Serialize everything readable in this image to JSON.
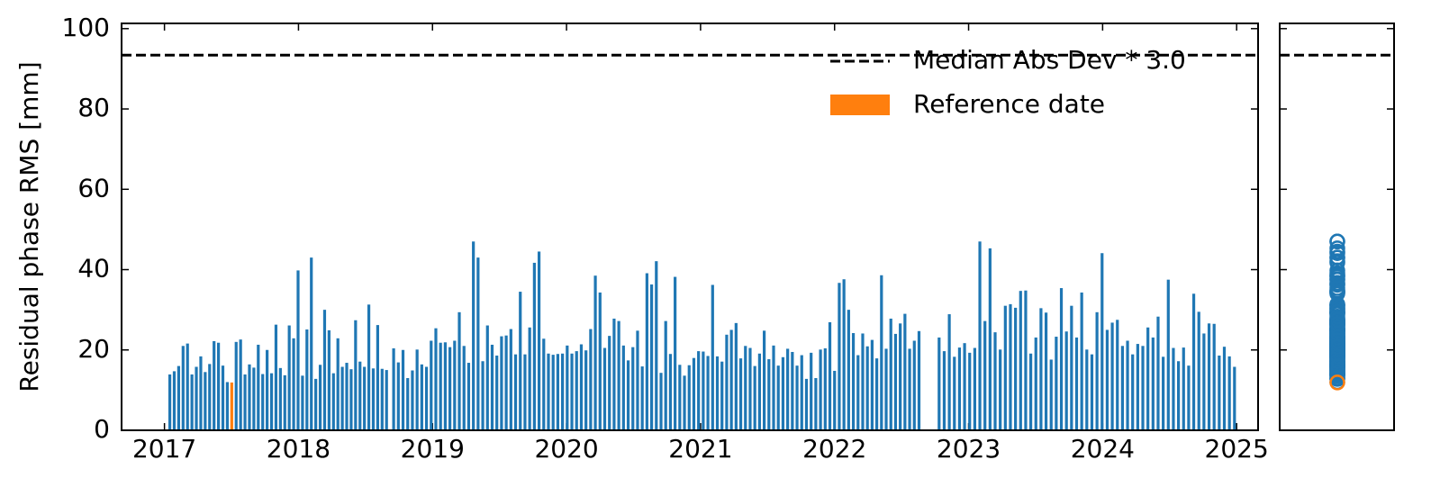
{
  "chart_data": {
    "type": "bar",
    "y_label": "Residual phase RMS [mm]",
    "xlim": [
      2016.68,
      2025.16
    ],
    "xticks": [
      2017,
      2018,
      2019,
      2020,
      2021,
      2022,
      2023,
      2024,
      2025
    ],
    "ylim": [
      0,
      101.3
    ],
    "yticks": [
      0,
      20,
      40,
      60,
      80,
      100
    ],
    "threshold": {
      "label": "Median Abs Dev * 3.0",
      "value": 93.4
    },
    "series": [
      {
        "color": "#1f77b4",
        "x": [
          2017.04,
          2017.073,
          2017.106,
          2017.139,
          2017.172,
          2017.205,
          2017.238,
          2017.271,
          2017.304,
          2017.337,
          2017.37,
          2017.403,
          2017.436,
          2017.469,
          2017.535,
          2017.568,
          2017.601,
          2017.634,
          2017.667,
          2017.7,
          2017.733,
          2017.766,
          2017.799,
          2017.832,
          2017.865,
          2017.898,
          2017.931,
          2017.964,
          2017.997,
          2018.03,
          2018.063,
          2018.096,
          2018.129,
          2018.162,
          2018.195,
          2018.228,
          2018.261,
          2018.294,
          2018.327,
          2018.36,
          2018.393,
          2018.426,
          2018.459,
          2018.492,
          2018.525,
          2018.558,
          2018.591,
          2018.624,
          2018.657,
          2018.71,
          2018.745,
          2018.78,
          2018.815,
          2018.85,
          2018.885,
          2018.92,
          2018.955,
          2018.99,
          2019.025,
          2019.06,
          2019.095,
          2019.13,
          2019.165,
          2019.2,
          2019.235,
          2019.27,
          2019.305,
          2019.34,
          2019.375,
          2019.41,
          2019.445,
          2019.48,
          2019.515,
          2019.55,
          2019.585,
          2019.62,
          2019.655,
          2019.69,
          2019.725,
          2019.76,
          2019.795,
          2019.83,
          2019.865,
          2019.9,
          2019.935,
          2019.97,
          2020.005,
          2020.04,
          2020.075,
          2020.11,
          2020.145,
          2020.18,
          2020.215,
          2020.25,
          2020.285,
          2020.32,
          2020.355,
          2020.39,
          2020.425,
          2020.46,
          2020.495,
          2020.53,
          2020.565,
          2020.6,
          2020.635,
          2020.67,
          2020.705,
          2020.74,
          2020.775,
          2020.81,
          2020.845,
          2020.88,
          2020.915,
          2020.95,
          2020.985,
          2021.02,
          2021.055,
          2021.09,
          2021.125,
          2021.16,
          2021.195,
          2021.23,
          2021.265,
          2021.3,
          2021.335,
          2021.37,
          2021.405,
          2021.44,
          2021.475,
          2021.51,
          2021.545,
          2021.58,
          2021.615,
          2021.65,
          2021.685,
          2021.72,
          2021.755,
          2021.79,
          2021.825,
          2021.86,
          2021.895,
          2021.93,
          2021.965,
          2022.0,
          2022.035,
          2022.07,
          2022.105,
          2022.14,
          2022.175,
          2022.21,
          2022.245,
          2022.28,
          2022.315,
          2022.35,
          2022.385,
          2022.42,
          2022.455,
          2022.49,
          2022.525,
          2022.56,
          2022.595,
          2022.63,
          2022.78,
          2022.818,
          2022.856,
          2022.894,
          2022.932,
          2022.97,
          2023.008,
          2023.046,
          2023.084,
          2023.122,
          2023.16,
          2023.198,
          2023.236,
          2023.274,
          2023.312,
          2023.35,
          2023.388,
          2023.426,
          2023.464,
          2023.502,
          2023.54,
          2023.578,
          2023.616,
          2023.654,
          2023.692,
          2023.73,
          2023.768,
          2023.806,
          2023.844,
          2023.882,
          2023.92,
          2023.958,
          2023.996,
          2024.034,
          2024.072,
          2024.11,
          2024.148,
          2024.186,
          2024.224,
          2024.262,
          2024.3,
          2024.338,
          2024.376,
          2024.414,
          2024.452,
          2024.49,
          2024.528,
          2024.566,
          2024.604,
          2024.642,
          2024.68,
          2024.718,
          2024.756,
          2024.794,
          2024.832,
          2024.87,
          2024.908,
          2024.946,
          2024.984
        ],
        "values": [
          13.9,
          14.7,
          16,
          21,
          21.6,
          13.9,
          15.8,
          18.4,
          14.5,
          16.5,
          22.2,
          21.8,
          16.1,
          12,
          22,
          22.6,
          13.9,
          16.4,
          15.6,
          21.3,
          14,
          20,
          14.2,
          26.3,
          15.5,
          13.7,
          26.1,
          22.9,
          39.8,
          13.6,
          25.1,
          43,
          12.8,
          16.3,
          30,
          24.9,
          14.2,
          22.9,
          15.8,
          16.8,
          15.2,
          27.4,
          17.1,
          15.8,
          31.3,
          15.4,
          26.2,
          15.3,
          15,
          20.4,
          16.9,
          20,
          13,
          14.9,
          20.1,
          16.4,
          15.8,
          22.3,
          25.4,
          21.8,
          21.9,
          20.7,
          22.3,
          29.4,
          21,
          16.8,
          47,
          43,
          17.2,
          26.1,
          21.3,
          18.6,
          23.4,
          23.6,
          25.2,
          18.9,
          34.5,
          18.9,
          25.6,
          41.7,
          44.5,
          22.8,
          19.1,
          18.8,
          19,
          19.1,
          21.1,
          19.1,
          19.7,
          21.4,
          19.9,
          25.2,
          38.5,
          34.3,
          20.5,
          23.5,
          27.8,
          27.2,
          21.1,
          17.4,
          20.7,
          24.8,
          15.9,
          39.1,
          36.3,
          42.1,
          14.3,
          27.2,
          19,
          38.2,
          16.3,
          13.6,
          16.2,
          18,
          19.7,
          19.6,
          18.5,
          36.2,
          18.4,
          17.1,
          23.8,
          25,
          26.7,
          17.9,
          21,
          20.5,
          16,
          19.1,
          24.8,
          17.7,
          21.1,
          16.1,
          18.2,
          20.3,
          19.5,
          16.1,
          18.7,
          12.8,
          19.3,
          13,
          20.1,
          20.4,
          26.9,
          14.8,
          36.7,
          37.6,
          30,
          24.2,
          18.7,
          24.1,
          20.9,
          22.5,
          17.9,
          38.6,
          20.3,
          27.8,
          24,
          26.6,
          29,
          20.3,
          22.3,
          24.7,
          23.1,
          19.7,
          28.9,
          18.3,
          20.6,
          21.7,
          19.3,
          20.5,
          47,
          27.2,
          45.3,
          24.4,
          20.1,
          31,
          31.4,
          30.5,
          34.7,
          34.8,
          19.1,
          23.1,
          30.4,
          29.3,
          17.6,
          23.3,
          35.4,
          24.6,
          31,
          23.1,
          34.3,
          20.1,
          18.9,
          29.4,
          44.1,
          25,
          26.8,
          27.5,
          21,
          22.3,
          18.9,
          21.5,
          21,
          25.6,
          23.1,
          28.3,
          18.3,
          37.5,
          20.5,
          17.2,
          20.6,
          16.1,
          34,
          29.5,
          24.1,
          26.6,
          26.5,
          18.6,
          20.8,
          18.4,
          15.8
        ]
      },
      {
        "name": "Reference date",
        "color": "#ff7f0e",
        "x": [
          2017.502
        ],
        "values": [
          11.9
        ]
      }
    ]
  }
}
